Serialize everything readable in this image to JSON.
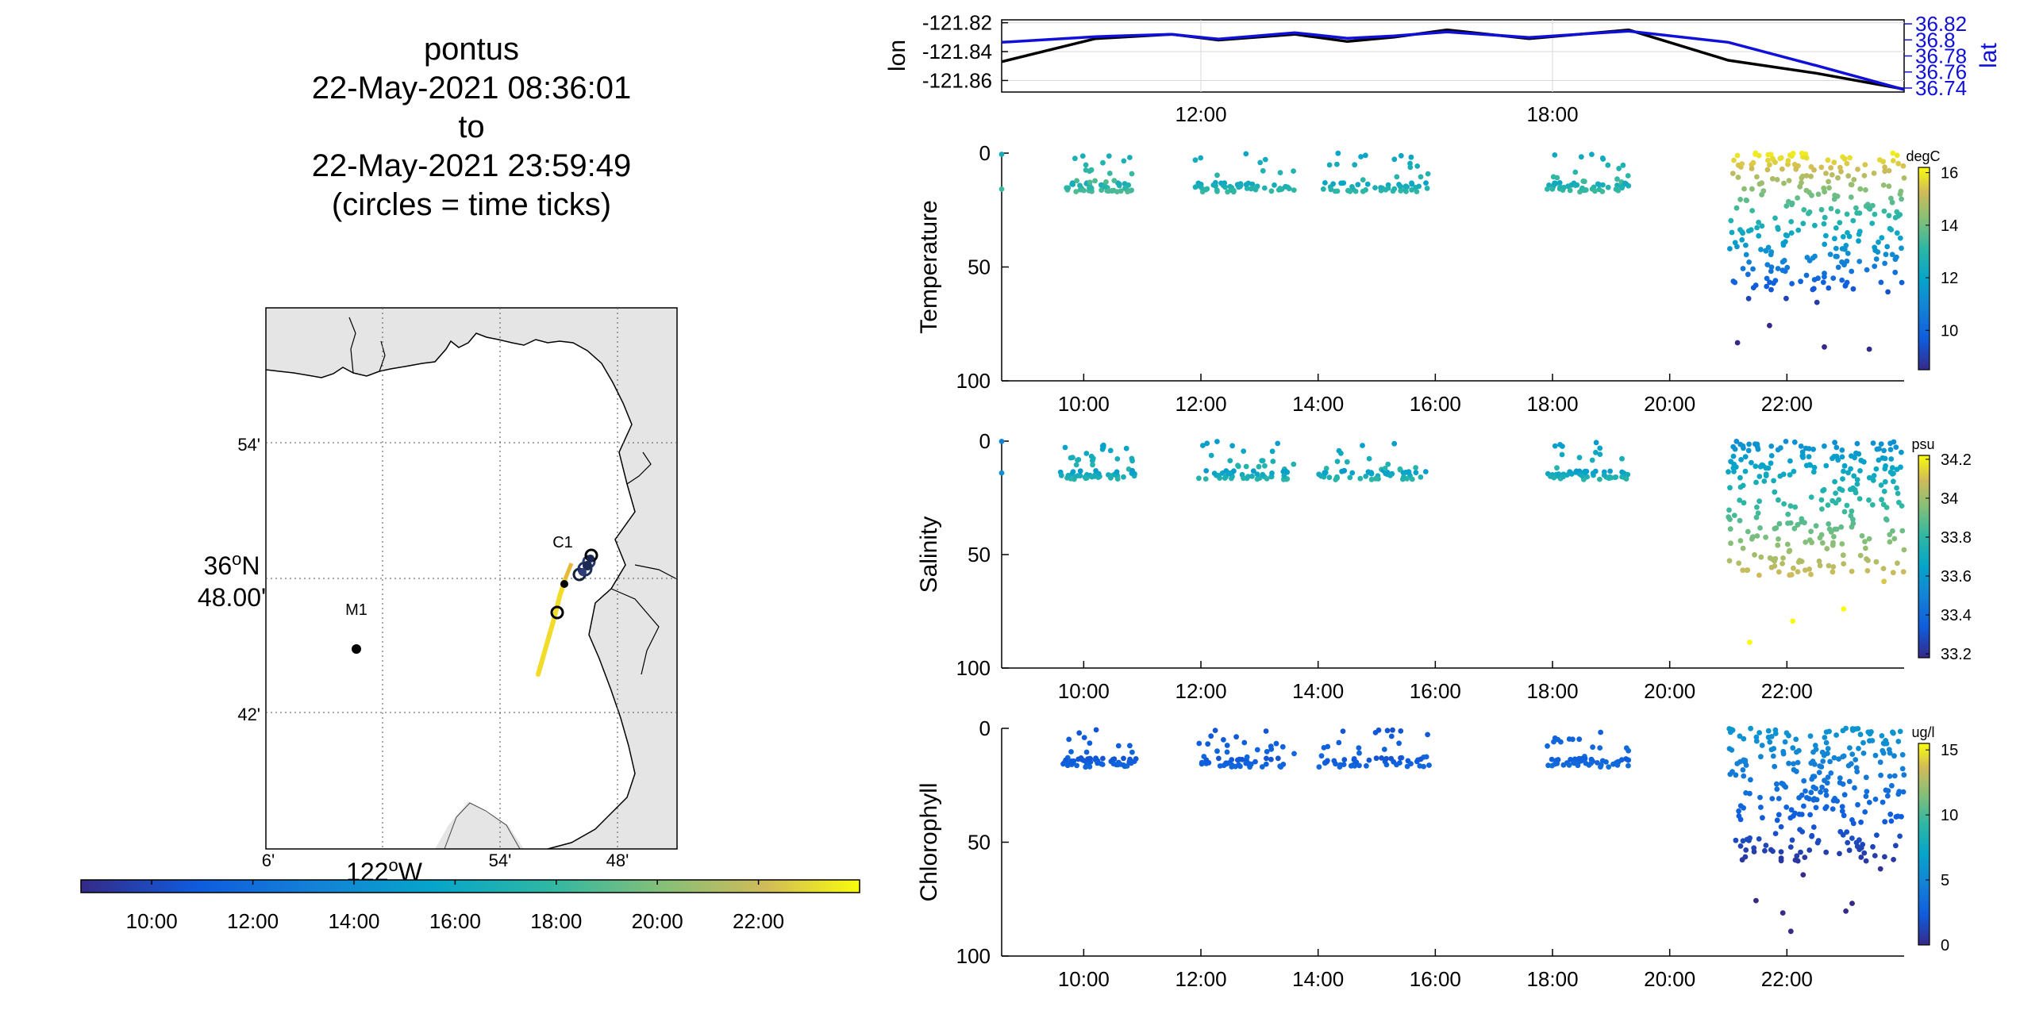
{
  "title": {
    "lines": [
      "pontus",
      "22-May-2021 08:36:01",
      "to",
      "22-May-2021 23:59:49",
      "(circles = time ticks)"
    ]
  },
  "map": {
    "lat_ticks": [
      "54'",
      "36°N 48.00'",
      "42'"
    ],
    "lat_tick_parts": {
      "deg": "36",
      "o": "o",
      "hem": "N",
      "min": "48.00'"
    },
    "lon_ticks": [
      "6'",
      "54'",
      "48'"
    ],
    "lon_label": {
      "deg": "122",
      "o": "o",
      "hem": "W"
    },
    "stations": [
      {
        "name": "M1",
        "lat_min": 45.6,
        "lon_min": 58.5
      },
      {
        "name": "C1",
        "lat_min": 49.4,
        "lon_min": 48.5
      }
    ],
    "colors": {
      "land": "#e5e5e5",
      "ocean": "#ffffff",
      "track_start": "#e8c23a",
      "track_end": "#f5e41e"
    }
  },
  "time_colorbar": {
    "ticks": [
      "10:00",
      "12:00",
      "14:00",
      "16:00",
      "18:00",
      "20:00",
      "22:00"
    ],
    "range_hours": [
      8.6,
      24.0
    ]
  },
  "chart_data": [
    {
      "type": "line",
      "panel": "lon-lat",
      "ylabel": "lon",
      "y2label": "lat",
      "yticks": [
        "-121.82",
        "-121.84",
        "-121.86"
      ],
      "y2ticks": [
        "36.82",
        "36.8",
        "36.78",
        "36.76",
        "36.74"
      ],
      "xticks": [
        "12:00",
        "18:00"
      ],
      "xlim": [
        8.6,
        24.0
      ],
      "ylim": [
        -121.868,
        -121.818
      ],
      "y2lim": [
        36.735,
        36.825
      ],
      "series": [
        {
          "axis": "left",
          "color": "#000000",
          "x": [
            8.6,
            10.2,
            11.5,
            12.3,
            13.6,
            14.5,
            15.3,
            16.2,
            17.6,
            19.3,
            21.0,
            22.5,
            24.0
          ],
          "y": [
            -121.847,
            -121.831,
            -121.828,
            -121.832,
            -121.828,
            -121.833,
            -121.83,
            -121.825,
            -121.831,
            -121.825,
            -121.846,
            -121.855,
            -121.866
          ]
        },
        {
          "axis": "right",
          "color": "#1010d8",
          "x": [
            8.6,
            10.2,
            11.5,
            12.3,
            13.6,
            14.5,
            15.3,
            16.2,
            17.6,
            19.3,
            21.0,
            22.5,
            24.0
          ],
          "y": [
            36.797,
            36.804,
            36.807,
            36.801,
            36.809,
            36.802,
            36.805,
            36.81,
            36.803,
            36.811,
            36.797,
            36.768,
            36.738
          ]
        }
      ]
    },
    {
      "type": "scatter",
      "panel": "Temperature",
      "ylabel": "Temperature",
      "cbar_label": "degC",
      "cbar_ticks": [
        "16",
        "14",
        "12",
        "10"
      ],
      "cbar_range": [
        8.5,
        16.2
      ],
      "xticks": [
        "10:00",
        "12:00",
        "14:00",
        "16:00",
        "18:00",
        "20:00",
        "22:00"
      ],
      "yticks": [
        "0",
        "50",
        "100"
      ],
      "xlim": [
        8.6,
        24.0
      ],
      "ylim": [
        100,
        0
      ],
      "profiles": [
        {
          "t0": 8.6,
          "t1": 8.6,
          "max_depth": 1,
          "value": 13.0
        },
        {
          "t0": 9.6,
          "t1": 10.9,
          "max_depth": 15,
          "value": 13.0
        },
        {
          "t0": 11.9,
          "t1": 13.6,
          "max_depth": 15,
          "value": 12.7
        },
        {
          "t0": 14.0,
          "t1": 15.9,
          "max_depth": 15,
          "value": 12.6
        },
        {
          "t0": 17.9,
          "t1": 19.3,
          "max_depth": 15,
          "value": 12.8
        },
        {
          "t0": 21.0,
          "t1": 24.0,
          "max_depth": 60,
          "value": 12.0
        }
      ]
    },
    {
      "type": "scatter",
      "panel": "Salinity",
      "ylabel": "Salinity",
      "cbar_label": "psu",
      "cbar_ticks": [
        "34.2",
        "34",
        "33.8",
        "33.6",
        "33.4",
        "33.2"
      ],
      "cbar_range": [
        33.18,
        34.22
      ],
      "xticks": [
        "10:00",
        "12:00",
        "14:00",
        "16:00",
        "18:00",
        "20:00",
        "22:00"
      ],
      "yticks": [
        "0",
        "50",
        "100"
      ],
      "xlim": [
        8.6,
        24.0
      ],
      "ylim": [
        100,
        0
      ],
      "profiles": [
        {
          "t0": 8.6,
          "t1": 8.6,
          "max_depth": 1,
          "value": 33.6
        },
        {
          "t0": 9.6,
          "t1": 10.9,
          "max_depth": 15,
          "value": 33.7
        },
        {
          "t0": 11.9,
          "t1": 13.6,
          "max_depth": 15,
          "value": 33.7
        },
        {
          "t0": 14.0,
          "t1": 15.9,
          "max_depth": 15,
          "value": 33.7
        },
        {
          "t0": 17.9,
          "t1": 19.3,
          "max_depth": 15,
          "value": 33.7
        },
        {
          "t0": 21.0,
          "t1": 24.0,
          "max_depth": 60,
          "value": 33.9
        }
      ]
    },
    {
      "type": "scatter",
      "panel": "Chlorophyll",
      "ylabel": "Chlorophyll",
      "cbar_label": "ug/l",
      "cbar_ticks": [
        "15",
        "10",
        "5",
        "0"
      ],
      "cbar_range": [
        0,
        15.5
      ],
      "xticks": [
        "10:00",
        "12:00",
        "14:00",
        "16:00",
        "18:00",
        "20:00",
        "22:00"
      ],
      "yticks": [
        "0",
        "50",
        "100"
      ],
      "xlim": [
        8.6,
        24.0
      ],
      "ylim": [
        100,
        0
      ],
      "profiles": [
        {
          "t0": 9.6,
          "t1": 10.9,
          "max_depth": 15,
          "value": 2.5
        },
        {
          "t0": 11.9,
          "t1": 13.6,
          "max_depth": 15,
          "value": 2.5
        },
        {
          "t0": 14.0,
          "t1": 15.9,
          "max_depth": 15,
          "value": 2.5
        },
        {
          "t0": 17.9,
          "t1": 19.3,
          "max_depth": 15,
          "value": 3.0
        },
        {
          "t0": 21.0,
          "t1": 24.0,
          "max_depth": 60,
          "value": 2.5
        }
      ]
    }
  ]
}
